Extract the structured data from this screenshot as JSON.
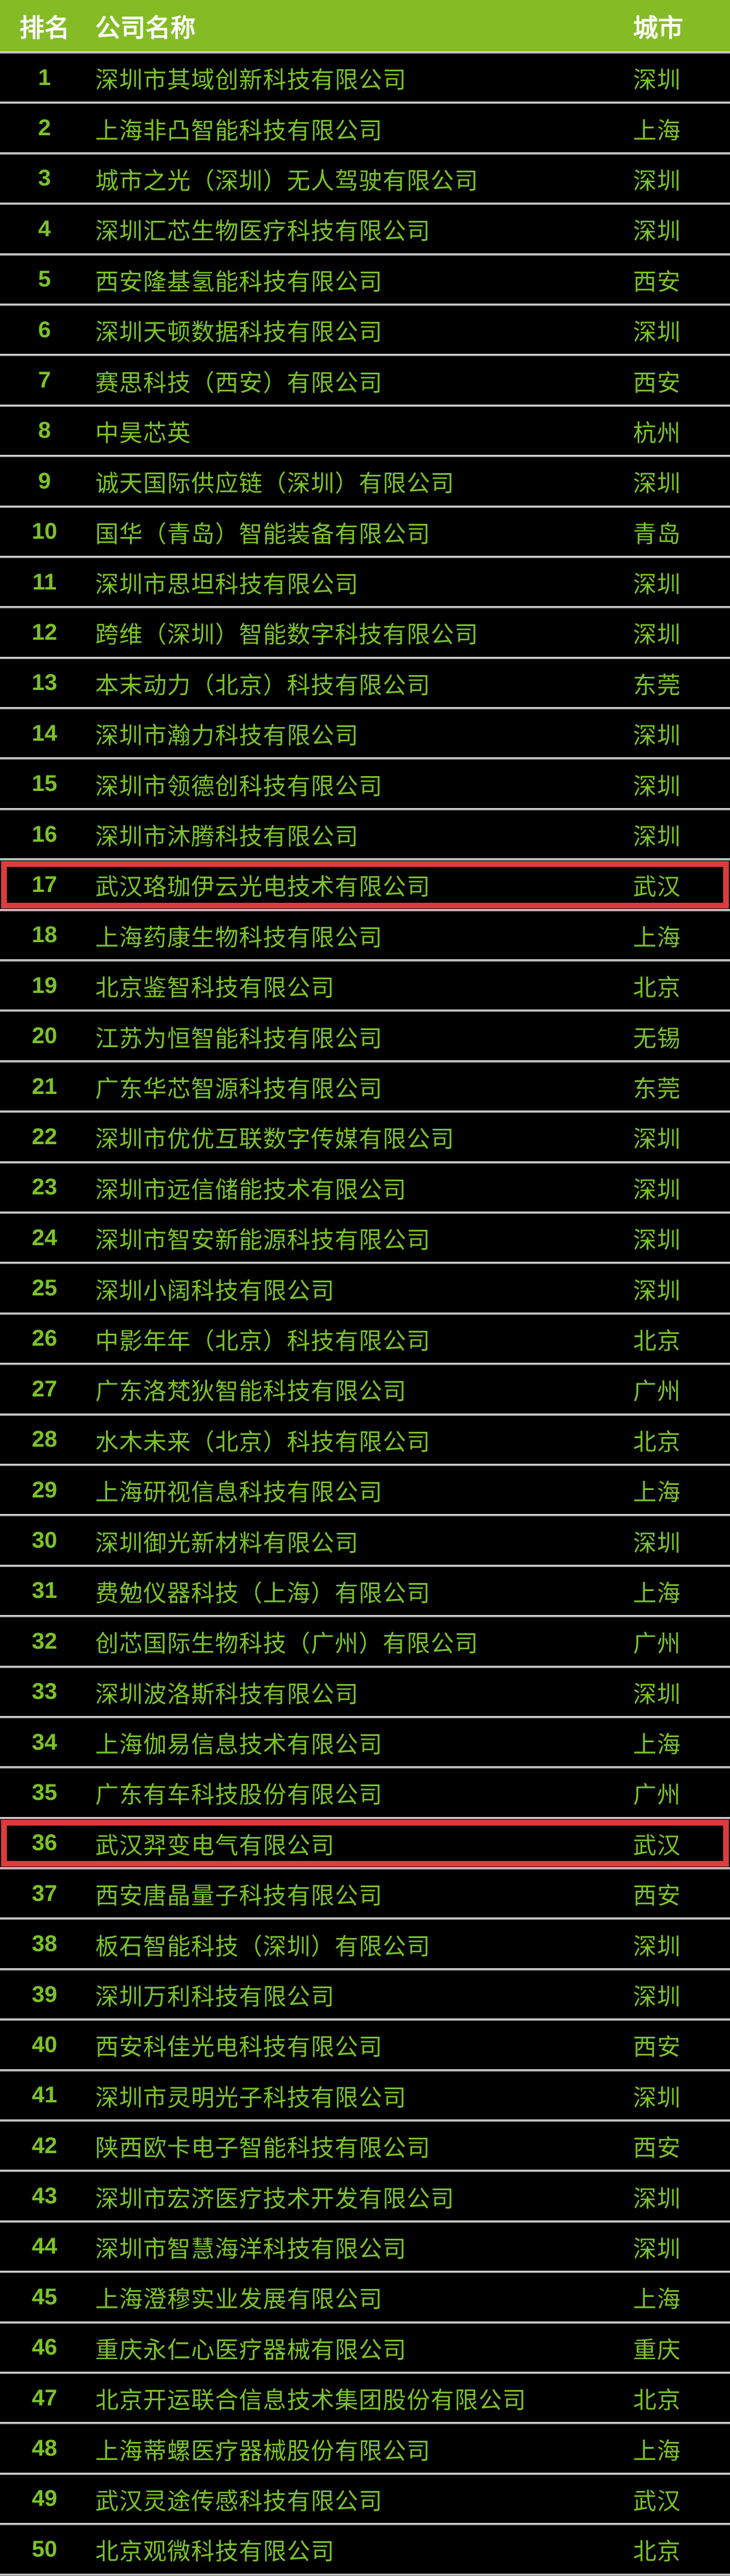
{
  "header": {
    "rank_label": "排名",
    "company_label": "公司名称",
    "city_label": "城市"
  },
  "colors": {
    "header_bg": "#85BC26",
    "header_text": "#FFFFFF",
    "row_bg": "#000000",
    "row_text_green": "#7CC32A",
    "separator_gray": "#C6C6C6",
    "highlight_border_red": "#DE3C3C"
  },
  "highlighted_ranks": [
    17,
    36
  ],
  "rows": [
    {
      "rank": 1,
      "company": "深圳市其域创新科技有限公司",
      "city": "深圳"
    },
    {
      "rank": 2,
      "company": "上海非凸智能科技有限公司",
      "city": "上海"
    },
    {
      "rank": 3,
      "company": "城市之光（深圳）无人驾驶有限公司",
      "city": "深圳"
    },
    {
      "rank": 4,
      "company": "深圳汇芯生物医疗科技有限公司",
      "city": "深圳"
    },
    {
      "rank": 5,
      "company": "西安隆基氢能科技有限公司",
      "city": "西安"
    },
    {
      "rank": 6,
      "company": "深圳天顿数据科技有限公司",
      "city": "深圳"
    },
    {
      "rank": 7,
      "company": "赛思科技（西安）有限公司",
      "city": "西安"
    },
    {
      "rank": 8,
      "company": "中昊芯英",
      "city": "杭州"
    },
    {
      "rank": 9,
      "company": "诚天国际供应链（深圳）有限公司",
      "city": "深圳"
    },
    {
      "rank": 10,
      "company": "国华（青岛）智能装备有限公司",
      "city": "青岛"
    },
    {
      "rank": 11,
      "company": "深圳市思坦科技有限公司",
      "city": "深圳"
    },
    {
      "rank": 12,
      "company": "跨维（深圳）智能数字科技有限公司",
      "city": "深圳"
    },
    {
      "rank": 13,
      "company": "本末动力（北京）科技有限公司",
      "city": "东莞"
    },
    {
      "rank": 14,
      "company": "深圳市瀚力科技有限公司",
      "city": "深圳"
    },
    {
      "rank": 15,
      "company": "深圳市领德创科技有限公司",
      "city": "深圳"
    },
    {
      "rank": 16,
      "company": "深圳市沐腾科技有限公司",
      "city": "深圳"
    },
    {
      "rank": 17,
      "company": "武汉珞珈伊云光电技术有限公司",
      "city": "武汉"
    },
    {
      "rank": 18,
      "company": "上海药康生物科技有限公司",
      "city": "上海"
    },
    {
      "rank": 19,
      "company": "北京鉴智科技有限公司",
      "city": "北京"
    },
    {
      "rank": 20,
      "company": "江苏为恒智能科技有限公司",
      "city": "无锡"
    },
    {
      "rank": 21,
      "company": "广东华芯智源科技有限公司",
      "city": "东莞"
    },
    {
      "rank": 22,
      "company": "深圳市优优互联数字传媒有限公司",
      "city": "深圳"
    },
    {
      "rank": 23,
      "company": "深圳市远信储能技术有限公司",
      "city": "深圳"
    },
    {
      "rank": 24,
      "company": "深圳市智安新能源科技有限公司",
      "city": "深圳"
    },
    {
      "rank": 25,
      "company": "深圳小阔科技有限公司",
      "city": "深圳"
    },
    {
      "rank": 26,
      "company": "中影年年（北京）科技有限公司",
      "city": "北京"
    },
    {
      "rank": 27,
      "company": "广东洛梵狄智能科技有限公司",
      "city": "广州"
    },
    {
      "rank": 28,
      "company": "水木未来（北京）科技有限公司",
      "city": "北京"
    },
    {
      "rank": 29,
      "company": "上海研视信息科技有限公司",
      "city": "上海"
    },
    {
      "rank": 30,
      "company": "深圳御光新材料有限公司",
      "city": "深圳"
    },
    {
      "rank": 31,
      "company": "费勉仪器科技（上海）有限公司",
      "city": "上海"
    },
    {
      "rank": 32,
      "company": "创芯国际生物科技（广州）有限公司",
      "city": "广州"
    },
    {
      "rank": 33,
      "company": "深圳波洛斯科技有限公司",
      "city": "深圳"
    },
    {
      "rank": 34,
      "company": "上海伽易信息技术有限公司",
      "city": "上海"
    },
    {
      "rank": 35,
      "company": "广东有车科技股份有限公司",
      "city": "广州"
    },
    {
      "rank": 36,
      "company": "武汉羿变电气有限公司",
      "city": "武汉"
    },
    {
      "rank": 37,
      "company": "西安唐晶量子科技有限公司",
      "city": "西安"
    },
    {
      "rank": 38,
      "company": "板石智能科技（深圳）有限公司",
      "city": "深圳"
    },
    {
      "rank": 39,
      "company": "深圳万利科技有限公司",
      "city": "深圳"
    },
    {
      "rank": 40,
      "company": "西安科佳光电科技有限公司",
      "city": "西安"
    },
    {
      "rank": 41,
      "company": "深圳市灵明光子科技有限公司",
      "city": "深圳"
    },
    {
      "rank": 42,
      "company": "陕西欧卡电子智能科技有限公司",
      "city": "西安"
    },
    {
      "rank": 43,
      "company": "深圳市宏济医疗技术开发有限公司",
      "city": "深圳"
    },
    {
      "rank": 44,
      "company": "深圳市智慧海洋科技有限公司",
      "city": "深圳"
    },
    {
      "rank": 45,
      "company": "上海澄穆实业发展有限公司",
      "city": "上海"
    },
    {
      "rank": 46,
      "company": "重庆永仁心医疗器械有限公司",
      "city": "重庆"
    },
    {
      "rank": 47,
      "company": "北京开运联合信息技术集团股份有限公司",
      "city": "北京"
    },
    {
      "rank": 48,
      "company": "上海蒂螺医疗器械股份有限公司",
      "city": "上海"
    },
    {
      "rank": 49,
      "company": "武汉灵途传感科技有限公司",
      "city": "武汉"
    },
    {
      "rank": 50,
      "company": "北京观微科技有限公司",
      "city": "北京"
    }
  ]
}
